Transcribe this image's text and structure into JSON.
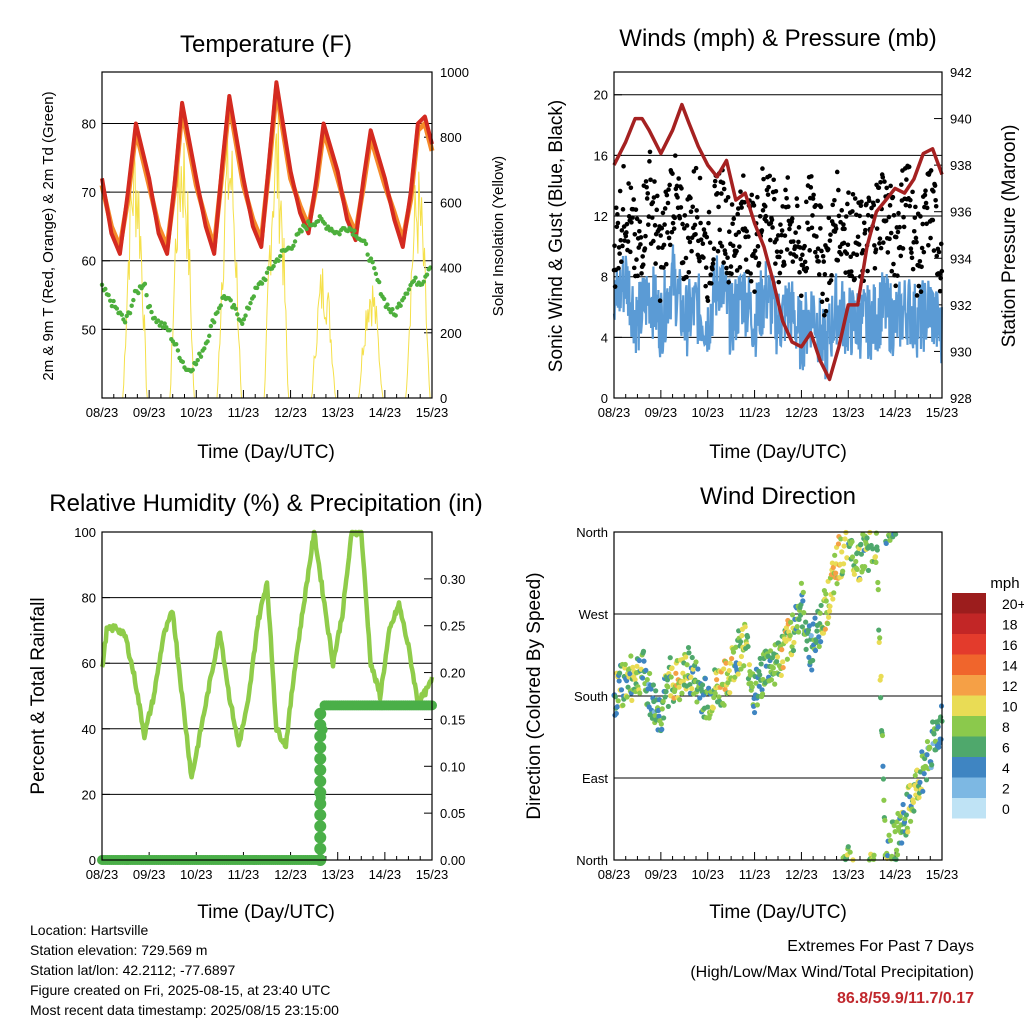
{
  "info": {
    "location": "Location: Hartsville",
    "elevation": "Station elevation: 729.569 m",
    "latlon": "Station lat/lon: 42.2112; -77.6897",
    "created": "Figure created on Fri, 2025-08-15, at 23:40 UTC",
    "recent": "Most recent data timestamp: 2025/08/15 23:15:00"
  },
  "extremes": {
    "title": "Extremes For Past 7 Days",
    "subtitle": "(High/Low/Max Wind/Total Precipitation)",
    "values": "86.8/59.9/11.7/0.17"
  },
  "colors": {
    "temp_2m": "#d42a20",
    "temp_9m": "#f58a2a",
    "dewpoint": "#4daf3c",
    "solar": "#f5e04a",
    "wind": "#5b9bd5",
    "gust": "#000000",
    "pressure": "#a52121",
    "rh": "#8fcc4a",
    "precip": "#4aaf48"
  },
  "chart_data": [
    {
      "type": "line",
      "title": "Temperature (F)",
      "xlabel": "Time (Day/UTC)",
      "ylabel": "2m & 9m T (Red, Orange) & 2m Td (Green)",
      "ylabel_right": "Solar Insolation (Yellow)",
      "x_ticks": [
        "08/23",
        "09/23",
        "10/23",
        "11/23",
        "12/23",
        "13/23",
        "14/23",
        "15/23"
      ],
      "xlim": [
        0,
        7
      ],
      "ylim": [
        40,
        87.5
      ],
      "y_ticks": [
        50,
        60,
        70,
        80
      ],
      "ylim_right": [
        0,
        1000
      ],
      "y_ticks_right": [
        0,
        200,
        400,
        600,
        800,
        1000
      ],
      "grid": true,
      "series": [
        {
          "key": "temp_2m",
          "x": [
            0,
            0.2,
            0.38,
            0.55,
            0.72,
            1.0,
            1.2,
            1.38,
            1.55,
            1.7,
            2.0,
            2.2,
            2.38,
            2.55,
            2.7,
            3.0,
            3.2,
            3.38,
            3.55,
            3.7,
            4.0,
            4.2,
            4.38,
            4.55,
            4.7,
            5.0,
            5.2,
            5.38,
            5.55,
            5.7,
            6.0,
            6.2,
            6.38,
            6.55,
            6.7,
            6.85,
            7.0
          ],
          "values": [
            72,
            64,
            61,
            70,
            80,
            72,
            64,
            61,
            72,
            83,
            72,
            65,
            61,
            74,
            84,
            72,
            65,
            62,
            75,
            86,
            73,
            67,
            64,
            72,
            80,
            73,
            66,
            63,
            72,
            79,
            72,
            66,
            62,
            70,
            80,
            81,
            77
          ]
        },
        {
          "key": "temp_9m",
          "x": [
            0,
            0.2,
            0.38,
            0.55,
            0.72,
            1.0,
            1.2,
            1.38,
            1.55,
            1.7,
            2.0,
            2.2,
            2.38,
            2.55,
            2.7,
            3.0,
            3.2,
            3.38,
            3.55,
            3.7,
            4.0,
            4.2,
            4.38,
            4.55,
            4.7,
            5.0,
            5.2,
            5.38,
            5.55,
            5.7,
            6.0,
            6.2,
            6.38,
            6.55,
            6.7,
            6.85,
            7.0
          ],
          "values": [
            71,
            65,
            62,
            69,
            79,
            71,
            65,
            62,
            71,
            82,
            71,
            66,
            62,
            73,
            83,
            71,
            66,
            63,
            74,
            85,
            72,
            68,
            65,
            71,
            79,
            72,
            67,
            64,
            71,
            78,
            71,
            67,
            63,
            69,
            79,
            80,
            76
          ]
        },
        {
          "key": "dewpoint",
          "x": [
            0,
            0.3,
            0.5,
            0.7,
            0.9,
            1.0,
            1.2,
            1.4,
            1.6,
            1.8,
            2.0,
            2.2,
            2.4,
            2.6,
            2.8,
            3.0,
            3.2,
            3.5,
            3.8,
            4.0,
            4.3,
            4.6,
            5.0,
            5.2,
            5.4,
            5.6,
            5.8,
            6.0,
            6.2,
            6.4,
            6.6,
            6.8,
            7.0
          ],
          "values": [
            56,
            53,
            51,
            55,
            57,
            53,
            51,
            50,
            47,
            44,
            45,
            48,
            52,
            55,
            53,
            51,
            55,
            58,
            61,
            62,
            65,
            66,
            64,
            65,
            64,
            62,
            58,
            54,
            52,
            55,
            57,
            57,
            60
          ]
        },
        {
          "key": "solar",
          "x": [
            0,
            0.25,
            0.45,
            0.6,
            0.75,
            1.0,
            1.25,
            1.45,
            1.6,
            1.75,
            2.0,
            2.25,
            2.45,
            2.6,
            2.75,
            3.0,
            3.25,
            3.45,
            3.6,
            3.75,
            4.0,
            4.25,
            4.45,
            4.55,
            4.7,
            5.0,
            5.25,
            5.45,
            5.6,
            5.75,
            6.0,
            6.25,
            6.45,
            6.55,
            6.7,
            6.85,
            7.0
          ],
          "values": [
            0,
            0,
            350,
            850,
            300,
            0,
            0,
            600,
            900,
            200,
            0,
            0,
            500,
            880,
            100,
            0,
            0,
            700,
            920,
            150,
            0,
            0,
            950,
            300,
            700,
            0,
            0,
            900,
            400,
            200,
            0,
            0,
            850,
            950,
            300,
            700,
            0
          ],
          "axis": "right"
        }
      ]
    },
    {
      "type": "scatter",
      "title": "Winds (mph) & Pressure (mb)",
      "xlabel": "Time (Day/UTC)",
      "ylabel": "Sonic Wind & Gust (Blue, Black)",
      "ylabel_right": "Station Pressure (Maroon)",
      "x_ticks": [
        "08/23",
        "09/23",
        "10/23",
        "11/23",
        "12/23",
        "13/23",
        "14/23",
        "15/23"
      ],
      "xlim": [
        0,
        7
      ],
      "ylim": [
        0,
        21.5
      ],
      "y_ticks": [
        0,
        4,
        8,
        12,
        16,
        20
      ],
      "ylim_right": [
        928,
        942
      ],
      "y_ticks_right": [
        928,
        930,
        932,
        934,
        936,
        938,
        940,
        942
      ],
      "grid": true,
      "series": [
        {
          "key": "wind",
          "x": [
            0,
            0.25,
            0.5,
            0.75,
            1.0,
            1.25,
            1.5,
            1.75,
            2.0,
            2.25,
            2.5,
            2.75,
            3.0,
            3.25,
            3.5,
            3.75,
            4.0,
            4.25,
            4.5,
            4.75,
            5.0,
            5.25,
            5.5,
            5.75,
            6.0,
            6.25,
            6.5,
            6.75,
            7.0
          ],
          "values": [
            6,
            8,
            5,
            7,
            5,
            8,
            5,
            6,
            5,
            8,
            5,
            7,
            5,
            7,
            5,
            6,
            4,
            6,
            3,
            6,
            5,
            5,
            5,
            6,
            5,
            6,
            5,
            6,
            4
          ]
        },
        {
          "key": "gust",
          "x": [
            0,
            0.25,
            0.5,
            0.75,
            1.0,
            1.25,
            1.5,
            1.75,
            2.0,
            2.25,
            2.5,
            2.75,
            3.0,
            3.25,
            3.5,
            3.75,
            4.0,
            4.25,
            4.5,
            4.75,
            5.0,
            5.25,
            5.5,
            5.75,
            6.0,
            6.25,
            6.5,
            6.75,
            7.0
          ],
          "values": [
            10,
            13,
            9,
            14,
            9,
            14,
            10,
            13,
            9,
            13,
            10,
            12,
            10,
            14,
            10,
            12,
            9,
            13,
            8,
            12,
            11,
            10,
            11,
            13,
            10,
            14,
            9,
            13,
            9
          ]
        },
        {
          "key": "pressure",
          "axis": "right",
          "x": [
            0,
            0.25,
            0.45,
            0.6,
            0.75,
            1.0,
            1.25,
            1.45,
            1.6,
            1.8,
            2.0,
            2.2,
            2.4,
            2.6,
            2.8,
            3.0,
            3.2,
            3.4,
            3.6,
            3.8,
            4.0,
            4.2,
            4.4,
            4.6,
            4.8,
            5.0,
            5.2,
            5.4,
            5.6,
            5.8,
            6.0,
            6.2,
            6.4,
            6.6,
            6.8,
            7.0
          ],
          "values": [
            938,
            939,
            940,
            940,
            939.5,
            938.5,
            939.5,
            940.6,
            939.8,
            938.8,
            938,
            937.5,
            938.2,
            936.5,
            936.8,
            935.5,
            934.5,
            933,
            931.3,
            930.4,
            930.2,
            930.8,
            929.6,
            928.8,
            930.2,
            932,
            932,
            934.5,
            936,
            936.5,
            937,
            936.8,
            937.4,
            938.5,
            938.7,
            937.6
          ]
        }
      ]
    },
    {
      "type": "line",
      "title": "Relative Humidity (%) & Precipitation (in)",
      "xlabel": "Time (Day/UTC)",
      "ylabel": "Percent & Total Rainfall",
      "x_ticks": [
        "08/23",
        "09/23",
        "10/23",
        "11/23",
        "12/23",
        "13/23",
        "14/23",
        "15/23"
      ],
      "xlim": [
        0,
        7
      ],
      "ylim": [
        0,
        100
      ],
      "y_ticks": [
        0,
        20,
        40,
        60,
        80,
        100
      ],
      "ylim_right": [
        0,
        0.35
      ],
      "y_ticks_right": [
        "0.00",
        "0.05",
        "0.10",
        "0.15",
        "0.20",
        "0.25",
        "0.30"
      ],
      "grid": true,
      "series": [
        {
          "key": "rh",
          "x": [
            0,
            0.1,
            0.3,
            0.5,
            0.7,
            0.9,
            1.1,
            1.3,
            1.5,
            1.7,
            1.9,
            2.1,
            2.3,
            2.5,
            2.7,
            2.9,
            3.1,
            3.3,
            3.5,
            3.7,
            3.9,
            4.1,
            4.3,
            4.5,
            4.7,
            4.9,
            5.1,
            5.3,
            5.5,
            5.7,
            5.9,
            6.1,
            6.3,
            6.5,
            6.7,
            6.9,
            7.0
          ],
          "values": [
            58,
            70,
            71,
            68,
            55,
            38,
            50,
            68,
            76,
            50,
            25,
            40,
            55,
            70,
            50,
            35,
            48,
            72,
            85,
            40,
            35,
            60,
            80,
            100,
            80,
            60,
            75,
            100,
            100,
            60,
            50,
            70,
            78,
            65,
            48,
            52,
            55
          ]
        },
        {
          "key": "precip",
          "axis": "right",
          "x": [
            0,
            4.0,
            4.5,
            4.62,
            4.65,
            4.7,
            5.0,
            6.0,
            7.0
          ],
          "values": [
            0,
            0,
            0,
            0,
            0.1,
            0.165,
            0.165,
            0.165,
            0.165
          ]
        }
      ]
    },
    {
      "type": "scatter",
      "title": "Wind Direction",
      "xlabel": "Time (Day/UTC)",
      "ylabel": "Direction (Colored By Speed)",
      "x_ticks": [
        "08/23",
        "09/23",
        "10/23",
        "11/23",
        "12/23",
        "13/23",
        "14/23",
        "15/23"
      ],
      "xlim": [
        0,
        7
      ],
      "ylim": [
        0,
        360
      ],
      "y_tick_labels": [
        "North",
        "East",
        "South",
        "West",
        "North"
      ],
      "y_tick_values": [
        0,
        90,
        180,
        270,
        360
      ],
      "grid": true,
      "legend_title": "mph",
      "legend_labels": [
        "20+",
        "18",
        "16",
        "14",
        "12",
        "10",
        "8",
        "6",
        "4",
        "2",
        "0"
      ],
      "legend_colors": [
        "#9c1d1d",
        "#c22626",
        "#e33b2c",
        "#f0652c",
        "#f5a046",
        "#e9dc55",
        "#8bc94c",
        "#4fa86c",
        "#3f85c2",
        "#7db8e3",
        "#bfe3f5"
      ],
      "x": [
        0,
        0.2,
        0.4,
        0.6,
        0.8,
        1.0,
        1.2,
        1.4,
        1.6,
        1.8,
        2.0,
        2.2,
        2.4,
        2.6,
        2.8,
        3.0,
        3.2,
        3.4,
        3.6,
        3.8,
        4.0,
        4.2,
        4.4,
        4.6,
        4.8,
        5.0,
        5.2,
        5.4,
        5.6,
        5.8,
        6.0,
        6.2,
        6.4,
        6.6,
        6.8,
        7.0
      ],
      "values": [
        180,
        195,
        200,
        210,
        175,
        160,
        200,
        195,
        210,
        190,
        175,
        190,
        195,
        225,
        240,
        180,
        210,
        215,
        225,
        250,
        280,
        230,
        260,
        290,
        330,
        350,
        330,
        340,
        350,
        10,
        20,
        45,
        70,
        100,
        130,
        150
      ],
      "speeds": [
        6,
        7,
        8,
        6,
        5,
        5,
        8,
        10,
        7,
        6,
        6,
        9,
        10,
        7,
        8,
        6,
        7,
        6,
        9,
        8,
        6,
        5,
        7,
        10,
        11,
        7,
        8,
        7,
        9,
        6,
        7,
        6,
        8,
        6,
        5,
        6
      ]
    }
  ]
}
